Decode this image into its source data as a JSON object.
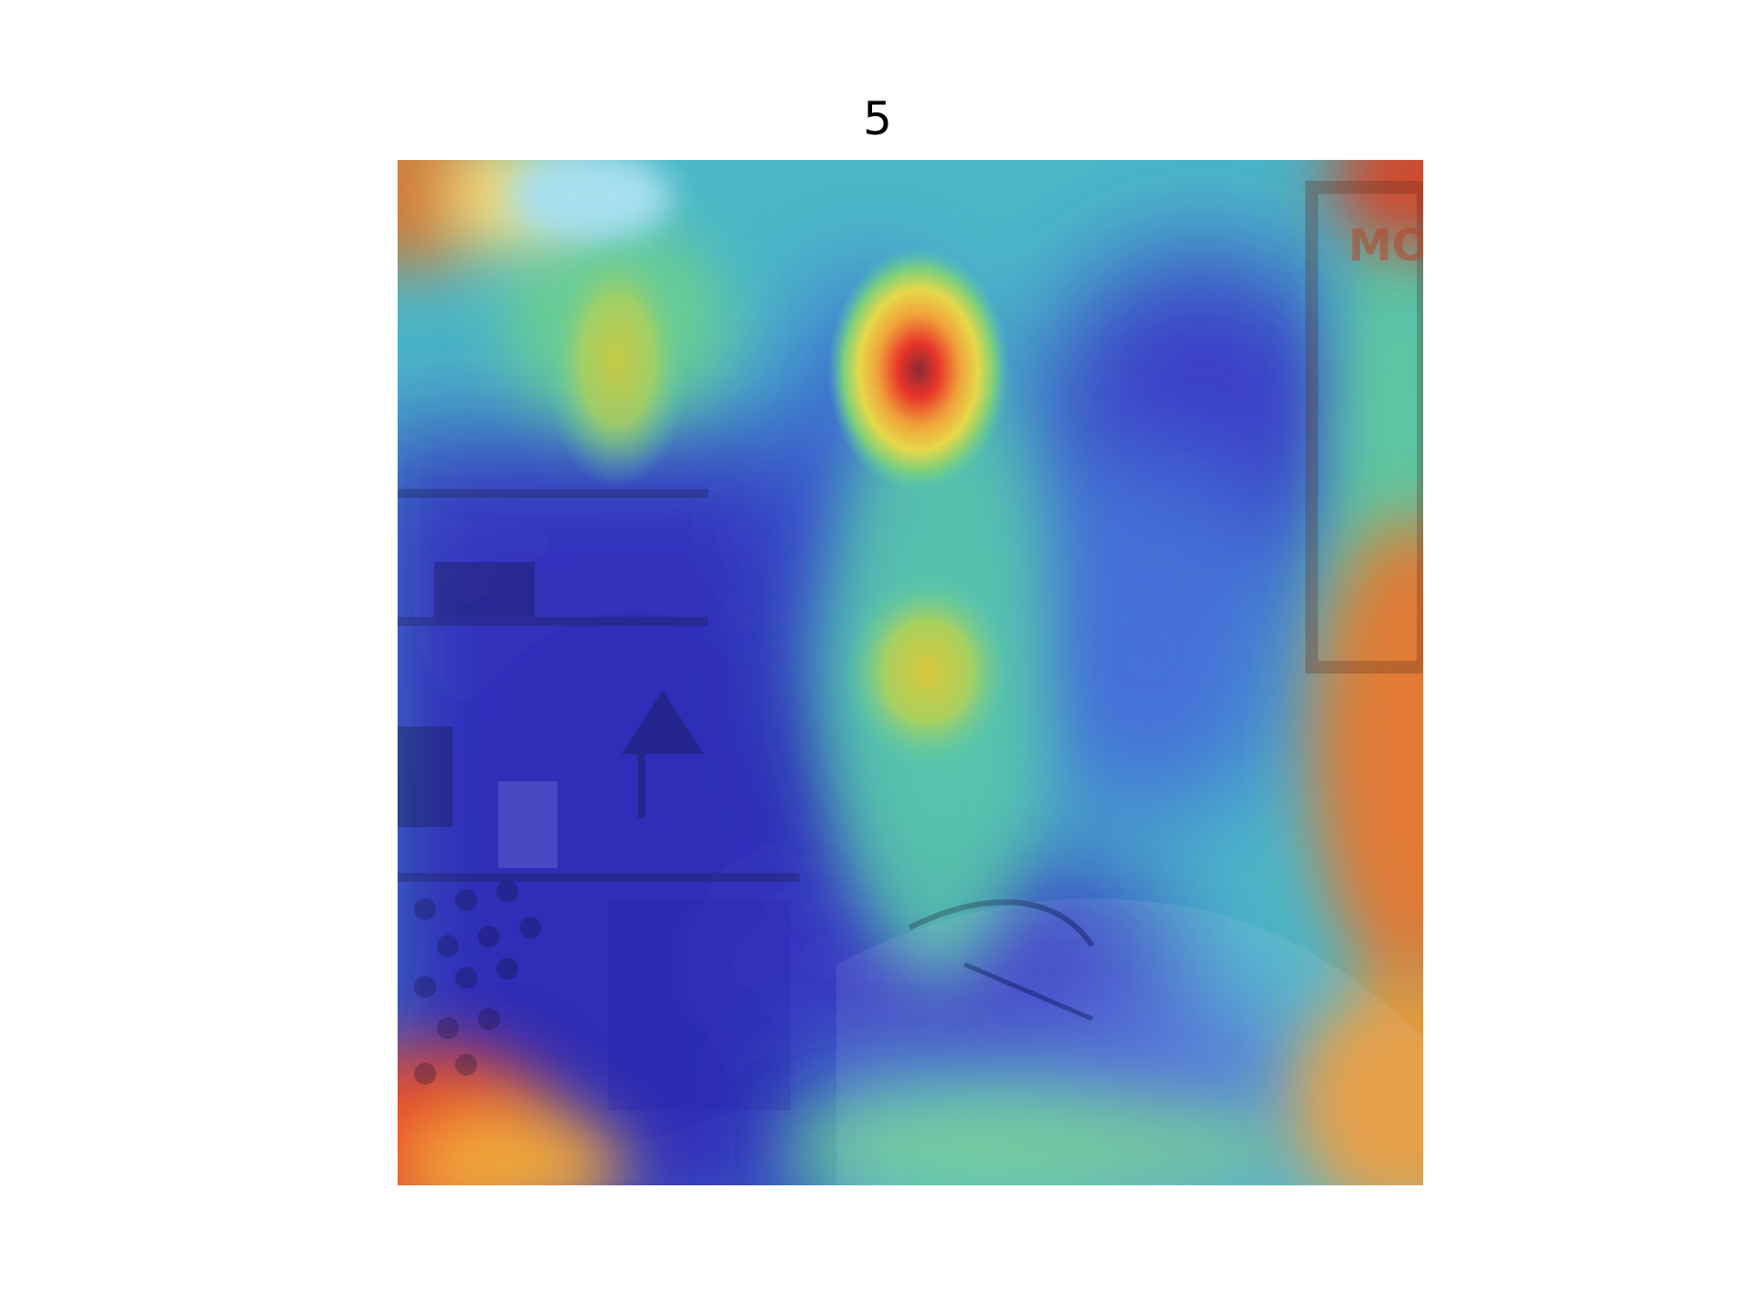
{
  "figure": {
    "title": "5"
  },
  "image": {
    "description_icon": "heatmap-overlay-image",
    "colormap": "jet",
    "colors": {
      "low": "#2b2fd0",
      "mid_low": "#3fb7e0",
      "mid": "#56d28a",
      "mid_high": "#e6d84a",
      "high": "#e8342a",
      "peak_dark": "#8a2a33"
    },
    "photo_text": "MO"
  }
}
